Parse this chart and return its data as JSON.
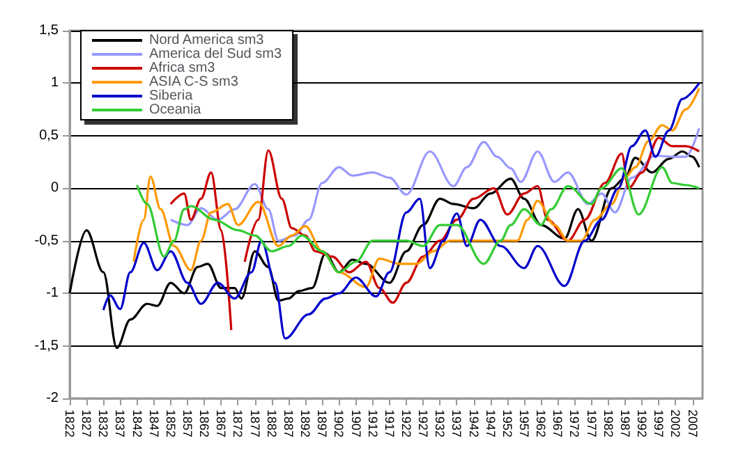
{
  "chart_data": {
    "type": "line",
    "xlim": [
      1822,
      2010
    ],
    "xticks": [
      1822,
      1827,
      1832,
      1837,
      1842,
      1847,
      1852,
      1857,
      1862,
      1867,
      1872,
      1877,
      1882,
      1887,
      1892,
      1897,
      1902,
      1907,
      1912,
      1917,
      1922,
      1927,
      1932,
      1937,
      1942,
      1947,
      1952,
      1957,
      1962,
      1967,
      1972,
      1977,
      1982,
      1987,
      1992,
      1997,
      2002,
      2007
    ],
    "ylim": [
      -2,
      1.5
    ],
    "yticks": [
      {
        "value": -2,
        "label": "-2"
      },
      {
        "value": -1.5,
        "label": "-1,5"
      },
      {
        "value": -1,
        "label": "-1"
      },
      {
        "value": -0.5,
        "label": "-0,5"
      },
      {
        "value": 0,
        "label": "0"
      },
      {
        "value": 0.5,
        "label": "0,5"
      },
      {
        "value": 1,
        "label": "1"
      },
      {
        "value": 1.5,
        "label": "1,5"
      }
    ],
    "grid": "y",
    "legend": "top left",
    "series": [
      {
        "name": "Nord America sm3",
        "color": "#000000",
        "x": [
          1822,
          1827,
          1832,
          1836,
          1840,
          1845,
          1848,
          1852,
          1856,
          1860,
          1863,
          1867,
          1871,
          1873,
          1877,
          1881,
          1884,
          1887,
          1890,
          1894,
          1898,
          1902,
          1906,
          1910,
          1917,
          1922,
          1927,
          1932,
          1936,
          1942,
          1947,
          1953,
          1957,
          1962,
          1969,
          1973,
          1977,
          1983,
          1987,
          1990,
          1995,
          2000,
          2004,
          2007,
          2009
        ],
        "values": [
          -1,
          -0.4,
          -0.8,
          -1.52,
          -1.25,
          -1.1,
          -1.12,
          -0.9,
          -1.0,
          -0.75,
          -0.72,
          -0.95,
          -0.95,
          -1.05,
          -0.6,
          -0.75,
          -1.07,
          -1.05,
          -0.98,
          -0.95,
          -0.62,
          -0.8,
          -0.68,
          -0.72,
          -0.9,
          -0.6,
          -0.35,
          -0.1,
          -0.15,
          -0.19,
          -0.05,
          0.09,
          -0.1,
          -0.35,
          -0.48,
          -0.2,
          -0.5,
          0,
          0.1,
          0.29,
          0.15,
          0.28,
          0.35,
          0.3,
          0.2
        ]
      },
      {
        "name": "America del Sud sm3",
        "color": "#9999ff",
        "x": [
          1852,
          1857,
          1861,
          1866,
          1871,
          1877,
          1881,
          1884,
          1889,
          1893,
          1897,
          1902,
          1906,
          1912,
          1917,
          1922,
          1929,
          1936,
          1940,
          1945,
          1949,
          1953,
          1956,
          1961,
          1966,
          1970,
          1976,
          1980,
          1984,
          1989,
          1996,
          2001,
          2005,
          2009
        ],
        "values": [
          -0.3,
          -0.35,
          -0.19,
          -0.3,
          -0.2,
          0.04,
          -0.2,
          -0.5,
          -0.45,
          -0.3,
          0.05,
          0.2,
          0.12,
          0.15,
          0.1,
          -0.06,
          0.35,
          0.02,
          0.2,
          0.44,
          0.3,
          0.19,
          0.06,
          0.35,
          0.06,
          0.15,
          -0.15,
          -0.05,
          -0.23,
          0.1,
          0.31,
          0.3,
          0.3,
          0.57
        ]
      },
      {
        "name": "Africa sm3",
        "color": "#cc0000",
        "x": [
          1852,
          1856,
          1858,
          1861,
          1864,
          1867,
          1870,
          null,
          1874,
          1878,
          1881,
          1885,
          1888,
          1892,
          1895,
          1900,
          1905,
          1910,
          1914,
          1918,
          1922,
          1927,
          1932,
          1937,
          1942,
          1948,
          1952,
          1957,
          1961,
          1964,
          1970,
          1975,
          1981,
          1986,
          1988,
          1992,
          1997,
          2001,
          2005,
          2009
        ],
        "values": [
          -0.15,
          -0.05,
          -0.3,
          -0.1,
          0.15,
          -0.4,
          -1.35,
          null,
          -0.7,
          -0.3,
          0.36,
          -0.1,
          -0.38,
          -0.45,
          -0.6,
          -0.65,
          -0.8,
          -0.7,
          -0.95,
          -1.09,
          -0.9,
          -0.65,
          -0.5,
          -0.3,
          -0.1,
          0,
          -0.25,
          -0.05,
          0.02,
          -0.3,
          -0.5,
          -0.3,
          0.05,
          0.33,
          0,
          0.15,
          0.48,
          0.4,
          0.4,
          0.35
        ]
      },
      {
        "name": "ASIA C-S sm3",
        "color": "#ff9900",
        "x": [
          1841,
          1844,
          1846,
          1849,
          1853,
          1858,
          1861,
          1864,
          1869,
          1872,
          1878,
          1884,
          1888,
          1892,
          1897,
          1902,
          1910,
          1914,
          1920,
          1925,
          1930,
          1935,
          1940,
          1945,
          1950,
          1955,
          1958,
          1961,
          1966,
          1970,
          1974,
          1978,
          1983,
          1987,
          1990,
          1994,
          1998,
          2001,
          2005,
          2009
        ],
        "values": [
          -0.7,
          -0.3,
          0.11,
          -0.2,
          -0.55,
          -0.78,
          -0.5,
          -0.23,
          -0.15,
          -0.35,
          -0.13,
          -0.55,
          -0.45,
          -0.36,
          -0.6,
          -0.8,
          -0.94,
          -0.67,
          -0.72,
          -0.72,
          -0.6,
          -0.5,
          -0.5,
          -0.5,
          -0.5,
          -0.5,
          -0.3,
          -0.12,
          -0.35,
          -0.5,
          -0.5,
          -0.3,
          -0.15,
          0.1,
          0.2,
          0.45,
          0.6,
          0.55,
          0.75,
          0.95
        ]
      },
      {
        "name": "Siberia",
        "color": "#0000cc",
        "x": [
          1832,
          1834,
          1837,
          1840,
          1844,
          1848,
          1852,
          1857,
          1861,
          1866,
          1871,
          1876,
          1879,
          1883,
          1886,
          1893,
          1898,
          1902,
          1907,
          1913,
          1917,
          1922,
          1926,
          1929,
          1933,
          1937,
          1940,
          1944,
          1950,
          1957,
          1961,
          1969,
          1975,
          1980,
          1985,
          1989,
          1993,
          1996,
          2000,
          2004,
          2009
        ],
        "values": [
          -1.16,
          -1.02,
          -1.15,
          -0.8,
          -0.52,
          -0.78,
          -0.6,
          -0.9,
          -1.1,
          -0.9,
          -1.05,
          -0.8,
          -0.5,
          -0.9,
          -1.43,
          -1.2,
          -1.05,
          -1.0,
          -0.85,
          -1.03,
          -0.8,
          -0.23,
          -0.1,
          -0.76,
          -0.5,
          -0.24,
          -0.55,
          -0.3,
          -0.55,
          -0.76,
          -0.55,
          -0.93,
          -0.5,
          -0.3,
          0,
          0.4,
          0.55,
          0.3,
          0.55,
          0.85,
          1.0
        ]
      },
      {
        "name": "Oceania",
        "color": "#33cc33",
        "x": [
          1842,
          1845,
          1850,
          1853,
          1856,
          1858,
          1865,
          1872,
          1877,
          1882,
          1887,
          1891,
          1897,
          1902,
          1907,
          1912,
          1917,
          1922,
          1927,
          1932,
          1937,
          1945,
          1950,
          1953,
          1957,
          1962,
          1965,
          1970,
          1977,
          1980,
          1986,
          1991,
          1998,
          2001,
          2005,
          2009
        ],
        "values": [
          0.03,
          -0.15,
          -0.65,
          -0.5,
          -0.2,
          -0.17,
          -0.3,
          -0.4,
          -0.45,
          -0.6,
          -0.55,
          -0.45,
          -0.6,
          -0.8,
          -0.7,
          -0.5,
          -0.5,
          -0.5,
          -0.55,
          -0.35,
          -0.35,
          -0.72,
          -0.5,
          -0.35,
          -0.2,
          -0.35,
          -0.2,
          0.02,
          -0.15,
          0,
          0.19,
          -0.25,
          0.2,
          0.05,
          0.03,
          0
        ]
      }
    ]
  }
}
